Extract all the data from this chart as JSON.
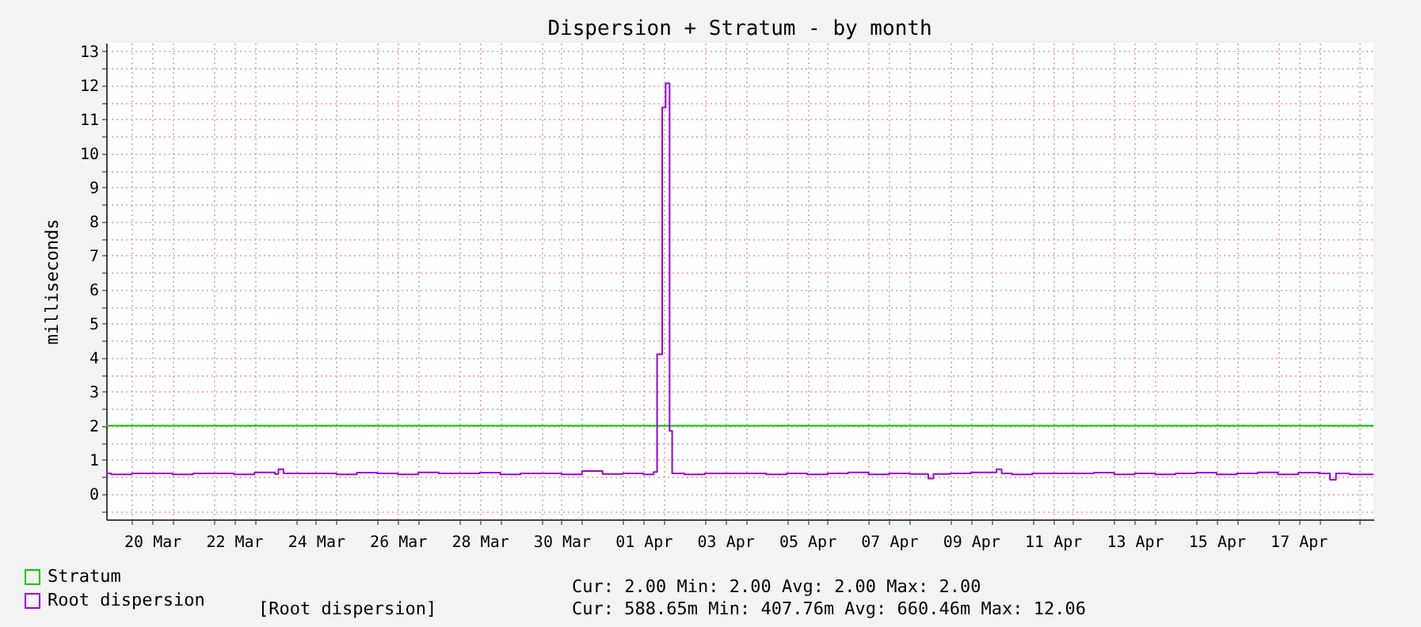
{
  "chart_data": {
    "type": "step",
    "title": "Dispersion + Stratum - by month",
    "ylabel": "milliseconds",
    "xlim": [
      "--03-19T09:00",
      "--04-19T08:00"
    ],
    "xticks": [
      {
        "value": "--03-20",
        "label": null
      },
      {
        "value": "--03-20T12:00",
        "label": "20 Mar"
      },
      {
        "value": "--03-21",
        "label": null
      },
      {
        "value": "--03-22",
        "label": null
      },
      {
        "value": "--03-22T12:00",
        "label": "22 Mar"
      },
      {
        "value": "--03-23",
        "label": null
      },
      {
        "value": "--03-24",
        "label": null
      },
      {
        "value": "--03-24T12:00",
        "label": "24 Mar"
      },
      {
        "value": "--03-25",
        "label": null
      },
      {
        "value": "--03-26",
        "label": null
      },
      {
        "value": "--03-26T12:00",
        "label": "26 Mar"
      },
      {
        "value": "--03-27",
        "label": null
      },
      {
        "value": "--03-28",
        "label": null
      },
      {
        "value": "--03-28T12:00",
        "label": "28 Mar"
      },
      {
        "value": "--03-29",
        "label": null
      },
      {
        "value": "--03-30",
        "label": null
      },
      {
        "value": "--03-30T12:00",
        "label": "30 Mar"
      },
      {
        "value": "--03-31",
        "label": null
      },
      {
        "value": "--04-01",
        "label": null
      },
      {
        "value": "--04-01T12:00",
        "label": "01 Apr"
      },
      {
        "value": "--04-02",
        "label": null
      },
      {
        "value": "--04-03",
        "label": null
      },
      {
        "value": "--04-03T12:00",
        "label": "03 Apr"
      },
      {
        "value": "--04-04",
        "label": null
      },
      {
        "value": "--04-05",
        "label": null
      },
      {
        "value": "--04-05T12:00",
        "label": "05 Apr"
      },
      {
        "value": "--04-06",
        "label": null
      },
      {
        "value": "--04-07",
        "label": null
      },
      {
        "value": "--04-07T12:00",
        "label": "07 Apr"
      },
      {
        "value": "--04-08",
        "label": null
      },
      {
        "value": "--04-09",
        "label": null
      },
      {
        "value": "--04-09T12:00",
        "label": "09 Apr"
      },
      {
        "value": "--04-10",
        "label": null
      },
      {
        "value": "--04-11",
        "label": null
      },
      {
        "value": "--04-11T12:00",
        "label": "11 Apr"
      },
      {
        "value": "--04-12",
        "label": null
      },
      {
        "value": "--04-13",
        "label": null
      },
      {
        "value": "--04-13T12:00",
        "label": "13 Apr"
      },
      {
        "value": "--04-14",
        "label": null
      },
      {
        "value": "--04-15",
        "label": null
      },
      {
        "value": "--04-15T12:00",
        "label": "15 Apr"
      },
      {
        "value": "--04-16",
        "label": null
      },
      {
        "value": "--04-17",
        "label": null
      },
      {
        "value": "--04-17T12:00",
        "label": "17 Apr"
      },
      {
        "value": "--04-18",
        "label": null
      },
      {
        "value": "--04-19",
        "label": null
      }
    ],
    "ylim": [
      -0.75,
      13.25
    ],
    "yticks": [
      {
        "value": -0.5,
        "label": null
      },
      0,
      {
        "value": 0.5,
        "label": null
      },
      1,
      {
        "value": 1.5,
        "label": null
      },
      2,
      {
        "value": 2.5,
        "label": null
      },
      3,
      {
        "value": 3.5,
        "label": null
      },
      4,
      {
        "value": 4.5,
        "label": null
      },
      5,
      {
        "value": 5.5,
        "label": null
      },
      6,
      {
        "value": 6.5,
        "label": null
      },
      7,
      {
        "value": 7.5,
        "label": null
      },
      8,
      {
        "value": 8.5,
        "label": null
      },
      9,
      {
        "value": 9.5,
        "label": null
      },
      10,
      {
        "value": 10.5,
        "label": null
      },
      11,
      {
        "value": 11.5,
        "label": null
      },
      12,
      {
        "value": 12.5,
        "label": null
      },
      13
    ],
    "grid": true,
    "legend": "bottom",
    "series": [
      {
        "name": "Stratum",
        "color": "#00cc00",
        "x": [
          "--03-19T09:00",
          "--04-19T08:00"
        ],
        "values": [
          2,
          2
        ]
      },
      {
        "name": "Root dispersion",
        "color": "#9900dd",
        "x": [
          "--03-19T09:00",
          "--03-19T12:00",
          "--03-20",
          "--03-20T12:00",
          "--03-21",
          "--03-21T12:00",
          "--03-22",
          "--03-22T12:00",
          "--03-23",
          "--03-23T12:00",
          "--03-23T14:00",
          "--03-23T17:00",
          "--03-24T12:00",
          "--03-25",
          "--03-25T12:00",
          "--03-26",
          "--03-26T12:00",
          "--03-27",
          "--03-27T12:00",
          "--03-28",
          "--03-28T12:00",
          "--03-29",
          "--03-29T12:00",
          "--03-30",
          "--03-30T12:00",
          "--03-31",
          "--03-31T12:00",
          "--04-01",
          "--04-01T12:00",
          "--04-01T18:00",
          "--04-01T20:00",
          "--04-01T23:00",
          "--04-02T01:00",
          "--04-02T03:20",
          "--04-02T04:50",
          "--04-02T12:00",
          "--04-03",
          "--04-03T12:00",
          "--04-04",
          "--04-04T12:00",
          "--04-05",
          "--04-05T12:00",
          "--04-06",
          "--04-06T12:00",
          "--04-07",
          "--04-07T12:00",
          "--04-08",
          "--04-08T11:00",
          "--04-08T14:00",
          "--04-09",
          "--04-09T12:00",
          "--04-10T03:00",
          "--04-10T06:00",
          "--04-10T12:00",
          "--04-11",
          "--04-11T12:00",
          "--04-12",
          "--04-12T12:00",
          "--04-13",
          "--04-13T12:00",
          "--04-14",
          "--04-14T12:00",
          "--04-15",
          "--04-15T12:00",
          "--04-16",
          "--04-16T12:00",
          "--04-17",
          "--04-17T12:00",
          "--04-18",
          "--04-18T06:30",
          "--04-18T10:00",
          "--04-18T18:00",
          "--04-19T08:00"
        ],
        "values": [
          0.6,
          0.57,
          0.6,
          0.6,
          0.57,
          0.6,
          0.6,
          0.57,
          0.63,
          0.58,
          0.72,
          0.6,
          0.6,
          0.57,
          0.62,
          0.6,
          0.57,
          0.63,
          0.6,
          0.6,
          0.62,
          0.57,
          0.6,
          0.6,
          0.57,
          0.67,
          0.58,
          0.6,
          0.57,
          0.64,
          4.1,
          11.35,
          12.06,
          1.85,
          0.6,
          0.57,
          0.6,
          0.6,
          0.6,
          0.57,
          0.6,
          0.57,
          0.6,
          0.63,
          0.57,
          0.6,
          0.58,
          0.45,
          0.58,
          0.6,
          0.63,
          0.72,
          0.6,
          0.57,
          0.6,
          0.6,
          0.6,
          0.62,
          0.57,
          0.6,
          0.57,
          0.6,
          0.62,
          0.57,
          0.6,
          0.63,
          0.57,
          0.62,
          0.6,
          0.41,
          0.6,
          0.57,
          0.59
        ]
      }
    ],
    "annotations": [
      "[Root dispersion]",
      "Cur:  2.00   Min:  2.00   Avg:  2.00   Max:  2.00",
      "Cur: 588.65m  Min: 407.76m  Avg: 660.46m  Max: 12.06"
    ]
  }
}
